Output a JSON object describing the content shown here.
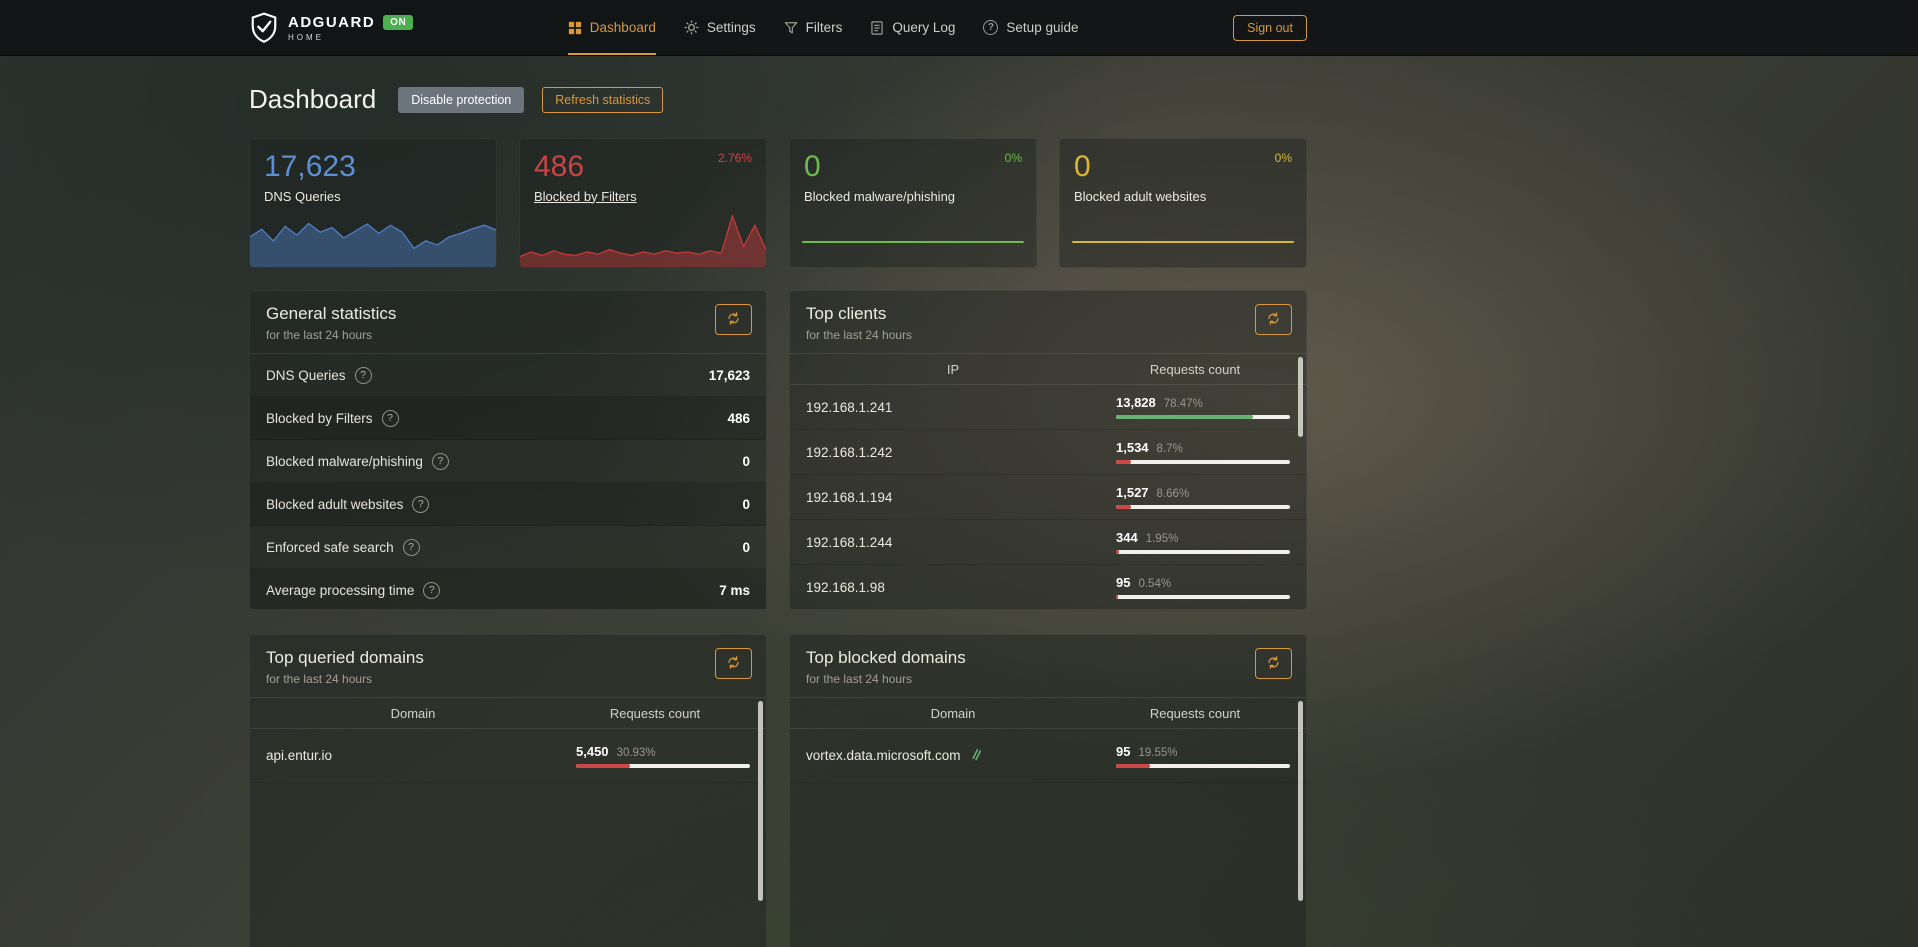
{
  "colors": {
    "accent": "#d9983c",
    "on_badge": "#4caf50",
    "bar_track": "#f1f0ea"
  },
  "icons": {
    "help": "?"
  },
  "header": {
    "brand": {
      "name": "ADGUARD",
      "sub": "HOME",
      "status": "ON"
    },
    "nav": [
      {
        "label": "Dashboard"
      },
      {
        "label": "Settings"
      },
      {
        "label": "Filters"
      },
      {
        "label": "Query Log"
      },
      {
        "label": "Setup guide"
      }
    ],
    "sign_out": "Sign out"
  },
  "page": {
    "title": "Dashboard",
    "disable_protection": "Disable protection",
    "refresh_statistics": "Refresh statistics"
  },
  "stat_cards": [
    {
      "value": "17,623",
      "label": "DNS Queries",
      "color": "#5e8fd4",
      "badge": "",
      "sparkline": {
        "color": "#4d7fc4",
        "points": [
          52,
          65,
          45,
          70,
          55,
          75,
          60,
          68,
          50,
          62,
          74,
          58,
          72,
          60,
          32,
          45,
          38,
          52,
          58,
          66,
          72,
          64
        ]
      }
    },
    {
      "value": "486",
      "label": "Blocked by Filters",
      "color": "#c94444",
      "badge": "2.76%",
      "sparkline": {
        "color": "#c43a3a",
        "points": [
          18,
          26,
          20,
          28,
          22,
          20,
          26,
          22,
          30,
          24,
          20,
          26,
          22,
          28,
          24,
          26,
          22,
          28,
          24,
          88,
          35,
          72,
          30
        ]
      }
    },
    {
      "value": "0",
      "label": "Blocked malware/phishing",
      "color": "#6cbb4f",
      "badge": "0%"
    },
    {
      "value": "0",
      "label": "Blocked adult websites",
      "color": "#d7b836",
      "badge": "0%"
    }
  ],
  "general_stats": {
    "title": "General statistics",
    "subtitle": "for the last 24 hours",
    "rows": [
      {
        "label": "DNS Queries",
        "value": "17,623"
      },
      {
        "label": "Blocked by Filters",
        "value": "486"
      },
      {
        "label": "Blocked malware/phishing",
        "value": "0"
      },
      {
        "label": "Blocked adult websites",
        "value": "0"
      },
      {
        "label": "Enforced safe search",
        "value": "0"
      },
      {
        "label": "Average processing time",
        "value": "7 ms"
      }
    ]
  },
  "top_clients": {
    "title": "Top clients",
    "subtitle": "for the last 24 hours",
    "col_key": "IP",
    "col_requests": "Requests count",
    "rows": [
      {
        "ip": "192.168.1.241",
        "count": "13,828",
        "pct": "78.47%",
        "fill": 78.47,
        "bar_color": "#67b173"
      },
      {
        "ip": "192.168.1.242",
        "count": "1,534",
        "pct": "8.7%",
        "fill": 8.7,
        "bar_color": "#cc4748"
      },
      {
        "ip": "192.168.1.194",
        "count": "1,527",
        "pct": "8.66%",
        "fill": 8.66,
        "bar_color": "#cc4748"
      },
      {
        "ip": "192.168.1.244",
        "count": "344",
        "pct": "1.95%",
        "fill": 1.95,
        "bar_color": "#cc4748"
      },
      {
        "ip": "192.168.1.98",
        "count": "95",
        "pct": "0.54%",
        "fill": 0.54,
        "bar_color": "#cc4748"
      }
    ]
  },
  "top_queried": {
    "title": "Top queried domains",
    "subtitle": "for the last 24 hours",
    "col_key": "Domain",
    "col_requests": "Requests count",
    "rows": [
      {
        "domain": "api.entur.io",
        "count": "5,450",
        "pct": "30.93%",
        "fill": 30.93,
        "bar_color": "#cc4748"
      }
    ]
  },
  "top_blocked": {
    "title": "Top blocked domains",
    "subtitle": "for the last 24 hours",
    "col_key": "Domain",
    "col_requests": "Requests count",
    "rows": [
      {
        "domain": "vortex.data.microsoft.com",
        "count": "95",
        "pct": "19.55%",
        "fill": 19.55,
        "bar_color": "#cc4748"
      }
    ]
  }
}
